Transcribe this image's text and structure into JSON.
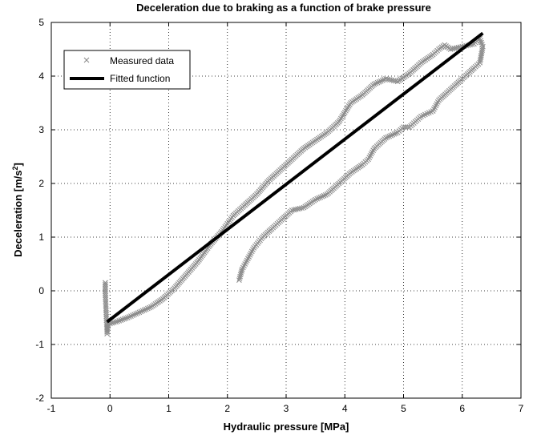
{
  "chart_data": {
    "type": "scatter",
    "title": "Deceleration due to braking as a function of brake pressure",
    "xlabel": "Hydraulic pressure [MPa]",
    "ylabel": "Deceleration [m/s",
    "ylabel_sup": "2",
    "ylabel_close": "]",
    "xlim": [
      -1,
      7
    ],
    "ylim": [
      -2,
      5
    ],
    "xticks": [
      -1,
      0,
      1,
      2,
      3,
      4,
      5,
      6,
      7
    ],
    "yticks": [
      -2,
      -1,
      0,
      1,
      2,
      3,
      4,
      5
    ],
    "xtick_labels": [
      "-1",
      "0",
      "1",
      "2",
      "3",
      "4",
      "5",
      "6",
      "7"
    ],
    "ytick_labels": [
      "-2",
      "-1",
      "0",
      "1",
      "2",
      "3",
      "4",
      "5"
    ],
    "grid": true,
    "legend": {
      "position": "top-left",
      "entries": [
        "Measured data",
        "Fitted function"
      ]
    },
    "series": [
      {
        "name": "Measured data",
        "marker": "x",
        "color": "#8c8c8c",
        "x": [
          -0.08,
          -0.08,
          -0.07,
          -0.06,
          -0.05,
          -0.03,
          0.1,
          0.3,
          0.5,
          0.7,
          0.9,
          1.1,
          1.3,
          1.5,
          1.7,
          1.9,
          2.0,
          2.1,
          2.3,
          2.5,
          2.7,
          2.9,
          3.1,
          3.3,
          3.5,
          3.7,
          3.9,
          4.1,
          4.3,
          4.5,
          4.7,
          4.9,
          5.1,
          5.3,
          5.5,
          5.6,
          5.7,
          5.8,
          6.0,
          6.2,
          6.3,
          6.35,
          6.3,
          6.2,
          6.0,
          5.8,
          5.6,
          5.5,
          5.4,
          5.3,
          5.2,
          5.1,
          5.0,
          4.9,
          4.7,
          4.5,
          4.4,
          4.3,
          4.1,
          3.9,
          3.7,
          3.5,
          3.3,
          3.1,
          2.9,
          2.8,
          2.6,
          2.45,
          2.35,
          2.25,
          2.2
        ],
        "y": [
          0.15,
          -0.05,
          -0.3,
          -0.55,
          -0.8,
          -0.62,
          -0.58,
          -0.5,
          -0.4,
          -0.3,
          -0.15,
          0.05,
          0.3,
          0.55,
          0.85,
          1.1,
          1.25,
          1.4,
          1.6,
          1.8,
          2.05,
          2.25,
          2.45,
          2.65,
          2.8,
          2.95,
          3.15,
          3.5,
          3.65,
          3.85,
          3.95,
          3.9,
          4.05,
          4.25,
          4.4,
          4.5,
          4.58,
          4.5,
          4.55,
          4.6,
          4.7,
          4.55,
          4.25,
          4.15,
          3.95,
          3.75,
          3.55,
          3.35,
          3.3,
          3.25,
          3.15,
          3.05,
          3.05,
          2.95,
          2.85,
          2.65,
          2.45,
          2.35,
          2.2,
          2.0,
          1.8,
          1.7,
          1.55,
          1.5,
          1.3,
          1.2,
          1.0,
          0.8,
          0.6,
          0.4,
          0.2
        ]
      },
      {
        "name": "Fitted function",
        "type": "line",
        "color": "#000000",
        "x": [
          -0.05,
          6.35
        ],
        "y": [
          -0.58,
          4.8
        ]
      }
    ]
  }
}
